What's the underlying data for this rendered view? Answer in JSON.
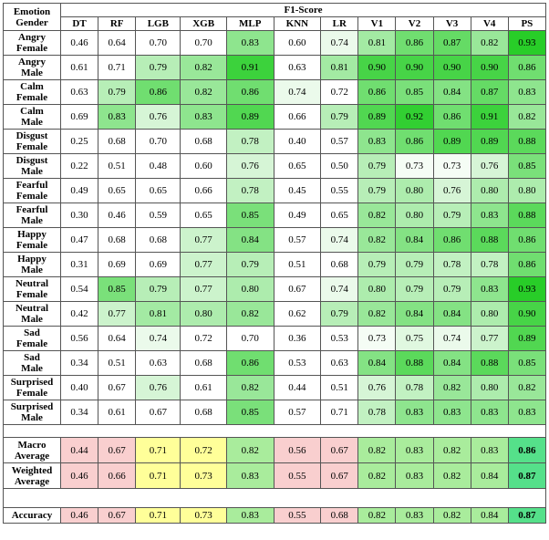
{
  "table": {
    "corner": [
      "Emotion",
      "Gender"
    ],
    "group_header": "F1-Score",
    "columns": [
      "DT",
      "RF",
      "LGB",
      "XGB",
      "MLP",
      "KNN",
      "LR",
      "V1",
      "V2",
      "V3",
      "V4",
      "PS"
    ],
    "rows": [
      {
        "label": [
          "Angry",
          "Female"
        ],
        "values": [
          "0.46",
          "0.64",
          "0.70",
          "0.70",
          "0.83",
          "0.60",
          "0.74",
          "0.81",
          "0.86",
          "0.87",
          "0.82",
          "0.93"
        ]
      },
      {
        "label": [
          "Angry",
          "Male"
        ],
        "values": [
          "0.61",
          "0.71",
          "0.79",
          "0.82",
          "0.91",
          "0.63",
          "0.81",
          "0.90",
          "0.90",
          "0.90",
          "0.90",
          "0.86"
        ]
      },
      {
        "label": [
          "Calm",
          "Female"
        ],
        "values": [
          "0.63",
          "0.79",
          "0.86",
          "0.82",
          "0.86",
          "0.74",
          "0.72",
          "0.86",
          "0.85",
          "0.84",
          "0.87",
          "0.83"
        ]
      },
      {
        "label": [
          "Calm",
          "Male"
        ],
        "values": [
          "0.69",
          "0.83",
          "0.76",
          "0.83",
          "0.89",
          "0.66",
          "0.79",
          "0.89",
          "0.92",
          "0.86",
          "0.91",
          "0.82"
        ]
      },
      {
        "label": [
          "Disgust",
          "Female"
        ],
        "values": [
          "0.25",
          "0.68",
          "0.70",
          "0.68",
          "0.78",
          "0.40",
          "0.57",
          "0.83",
          "0.86",
          "0.89",
          "0.89",
          "0.88"
        ]
      },
      {
        "label": [
          "Disgust",
          "Male"
        ],
        "values": [
          "0.22",
          "0.51",
          "0.48",
          "0.60",
          "0.76",
          "0.65",
          "0.50",
          "0.79",
          "0.73",
          "0.73",
          "0.76",
          "0.85"
        ]
      },
      {
        "label": [
          "Fearful",
          "Female"
        ],
        "values": [
          "0.49",
          "0.65",
          "0.65",
          "0.66",
          "0.78",
          "0.45",
          "0.55",
          "0.79",
          "0.80",
          "0.76",
          "0.80",
          "0.80"
        ]
      },
      {
        "label": [
          "Fearful",
          "Male"
        ],
        "values": [
          "0.30",
          "0.46",
          "0.59",
          "0.65",
          "0.85",
          "0.49",
          "0.65",
          "0.82",
          "0.80",
          "0.79",
          "0.83",
          "0.88"
        ]
      },
      {
        "label": [
          "Happy",
          "Female"
        ],
        "values": [
          "0.47",
          "0.68",
          "0.68",
          "0.77",
          "0.84",
          "0.57",
          "0.74",
          "0.82",
          "0.84",
          "0.86",
          "0.88",
          "0.86"
        ]
      },
      {
        "label": [
          "Happy",
          "Male"
        ],
        "values": [
          "0.31",
          "0.69",
          "0.69",
          "0.77",
          "0.79",
          "0.51",
          "0.68",
          "0.79",
          "0.79",
          "0.78",
          "0.78",
          "0.86"
        ]
      },
      {
        "label": [
          "Neutral",
          "Female"
        ],
        "values": [
          "0.54",
          "0.85",
          "0.79",
          "0.77",
          "0.80",
          "0.67",
          "0.74",
          "0.80",
          "0.79",
          "0.79",
          "0.83",
          "0.93"
        ]
      },
      {
        "label": [
          "Neutral",
          "Male"
        ],
        "values": [
          "0.42",
          "0.77",
          "0.81",
          "0.80",
          "0.82",
          "0.62",
          "0.79",
          "0.82",
          "0.84",
          "0.84",
          "0.80",
          "0.90"
        ]
      },
      {
        "label": [
          "Sad",
          "Female"
        ],
        "values": [
          "0.56",
          "0.64",
          "0.74",
          "0.72",
          "0.70",
          "0.36",
          "0.53",
          "0.73",
          "0.75",
          "0.74",
          "0.77",
          "0.89"
        ]
      },
      {
        "label": [
          "Sad",
          "Male"
        ],
        "values": [
          "0.34",
          "0.51",
          "0.63",
          "0.68",
          "0.86",
          "0.53",
          "0.63",
          "0.84",
          "0.88",
          "0.84",
          "0.88",
          "0.85"
        ]
      },
      {
        "label": [
          "Surprised",
          "Female"
        ],
        "values": [
          "0.40",
          "0.67",
          "0.76",
          "0.61",
          "0.82",
          "0.44",
          "0.51",
          "0.76",
          "0.78",
          "0.82",
          "0.80",
          "0.82"
        ]
      },
      {
        "label": [
          "Surprised",
          "Male"
        ],
        "values": [
          "0.34",
          "0.61",
          "0.67",
          "0.68",
          "0.85",
          "0.57",
          "0.71",
          "0.78",
          "0.83",
          "0.83",
          "0.83",
          "0.83"
        ]
      }
    ],
    "summary_rows": [
      {
        "label": [
          "Macro",
          "Average"
        ],
        "values": [
          "0.44",
          "0.67",
          "0.71",
          "0.72",
          "0.82",
          "0.56",
          "0.67",
          "0.82",
          "0.83",
          "0.82",
          "0.83",
          "0.86"
        ]
      },
      {
        "label": [
          "Weighted",
          "Average"
        ],
        "values": [
          "0.46",
          "0.66",
          "0.71",
          "0.73",
          "0.83",
          "0.55",
          "0.67",
          "0.82",
          "0.83",
          "0.82",
          "0.84",
          "0.87"
        ]
      }
    ],
    "accuracy_row": {
      "label": [
        "Accuracy"
      ],
      "values": [
        "0.46",
        "0.67",
        "0.71",
        "0.73",
        "0.83",
        "0.55",
        "0.68",
        "0.82",
        "0.83",
        "0.82",
        "0.84",
        "0.87"
      ]
    }
  }
}
